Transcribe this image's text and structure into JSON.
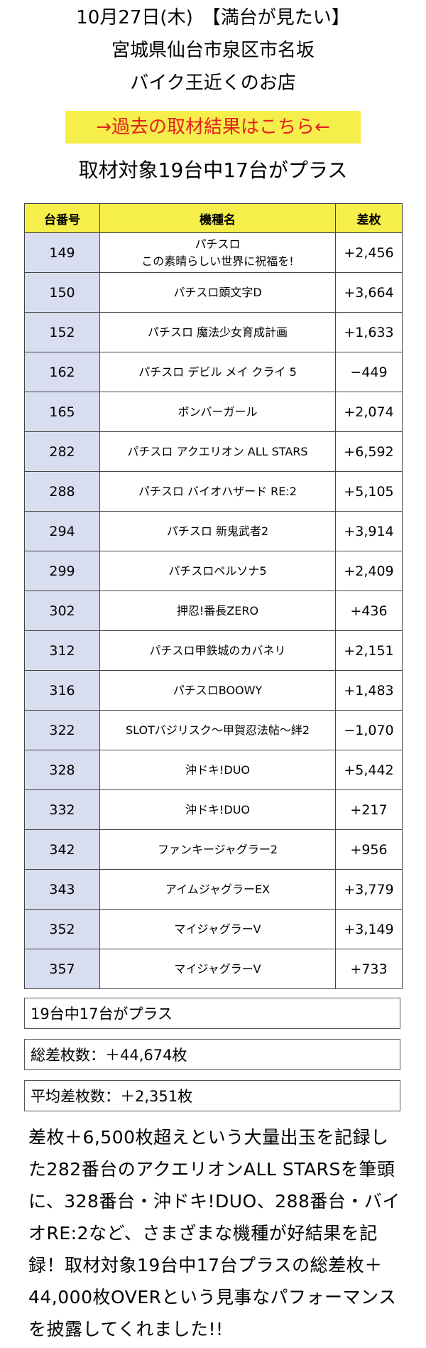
{
  "header": {
    "line1": "10月27日(木)　【満台が見たい】",
    "line2": "宮城県仙台市泉区市名坂",
    "line3": "バイク王近くのお店",
    "link": "→過去の取材結果はこちら←"
  },
  "headline": "取材対象19台中17台がプラス",
  "table": {
    "headers": [
      "台番号",
      "機種名",
      "差枚"
    ],
    "rows": [
      {
        "num": "149",
        "name": "パチスロ\nこの素晴らしい世界に祝福を!",
        "diff": "+2,456"
      },
      {
        "num": "150",
        "name": "パチスロ頭文字D",
        "diff": "+3,664"
      },
      {
        "num": "152",
        "name": "パチスロ 魔法少女育成計画",
        "diff": "+1,633"
      },
      {
        "num": "162",
        "name": "パチスロ デビル メイ クライ 5",
        "diff": "−449"
      },
      {
        "num": "165",
        "name": "ボンバーガール",
        "diff": "+2,074"
      },
      {
        "num": "282",
        "name": "パチスロ アクエリオン ALL STARS",
        "diff": "+6,592"
      },
      {
        "num": "288",
        "name": "パチスロ バイオハザード RE:2",
        "diff": "+5,105"
      },
      {
        "num": "294",
        "name": "パチスロ 新鬼武者2",
        "diff": "+3,914"
      },
      {
        "num": "299",
        "name": "パチスロペルソナ5",
        "diff": "+2,409"
      },
      {
        "num": "302",
        "name": "押忍!番長ZERO",
        "diff": "+436"
      },
      {
        "num": "312",
        "name": "パチスロ甲鉄城のカバネリ",
        "diff": "+2,151"
      },
      {
        "num": "316",
        "name": "パチスロBOOWY",
        "diff": "+1,483"
      },
      {
        "num": "322",
        "name": "SLOTバジリスク〜甲賀忍法帖〜絆2",
        "diff": "−1,070"
      },
      {
        "num": "328",
        "name": "沖ドキ!DUO",
        "diff": "+5,442"
      },
      {
        "num": "332",
        "name": "沖ドキ!DUO",
        "diff": "+217"
      },
      {
        "num": "342",
        "name": "ファンキージャグラー2",
        "diff": "+956"
      },
      {
        "num": "343",
        "name": "アイムジャグラーEX",
        "diff": "+3,779"
      },
      {
        "num": "352",
        "name": "マイジャグラーV",
        "diff": "+3,149"
      },
      {
        "num": "357",
        "name": "マイジャグラーV",
        "diff": "+733"
      }
    ]
  },
  "summary_boxes": {
    "plus_count": "19台中17台がプラス",
    "total": "総差枚数：＋44,674枚",
    "average": "平均差枚数：＋2,351枚"
  },
  "summary_text": "差枚＋6,500枚超えという大量出玉を記録した282番台のアクエリオンALL STARSを筆頭に、328番台・沖ドキ!DUO、288番台・バイオRE:2など、さまざまな機種が好結果を記録！取材対象19台中17台プラスの総差枚＋44,000枚OVERという見事なパフォーマンスを披露してくれました!!"
}
